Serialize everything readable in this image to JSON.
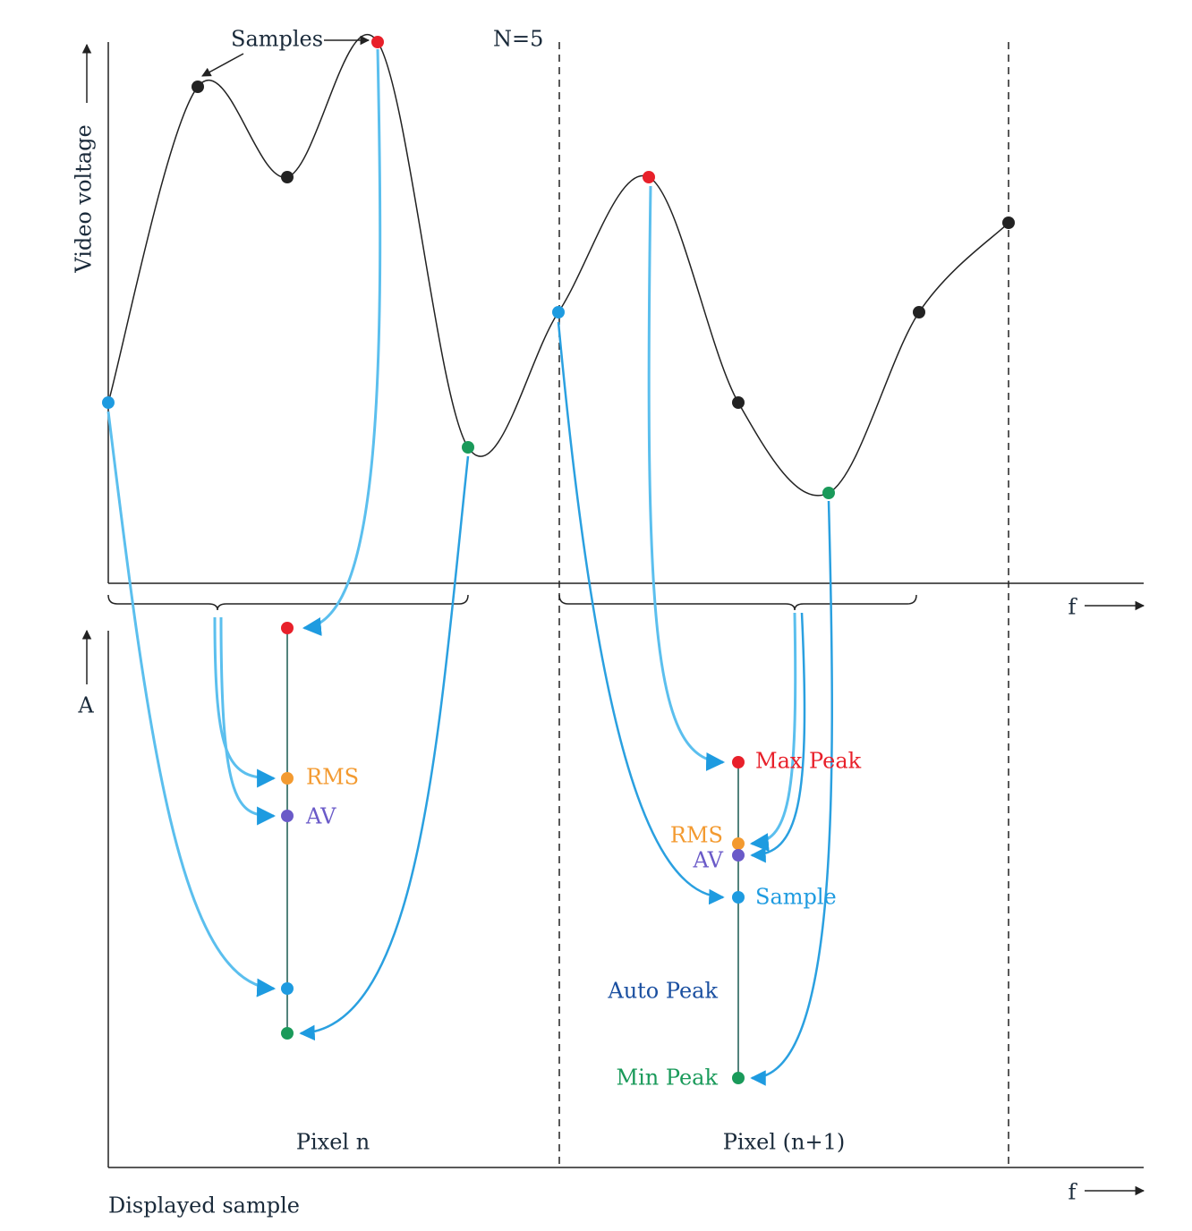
{
  "top_plot": {
    "y_axis_label": "Video voltage",
    "x_axis_label": "f",
    "annotation": "Samples",
    "n_label": "N=5"
  },
  "bottom_plot": {
    "y_axis_label": "A",
    "x_axis_label": "f",
    "footer": "Displayed sample",
    "pixels": [
      {
        "label": "Pixel n",
        "detectors": [
          "RMS",
          "AV"
        ]
      },
      {
        "label": "Pixel (n+1)",
        "detectors": [
          "Max Peak",
          "RMS",
          "AV",
          "Sample",
          "Min Peak"
        ],
        "group_label": "Auto Peak"
      }
    ]
  }
}
